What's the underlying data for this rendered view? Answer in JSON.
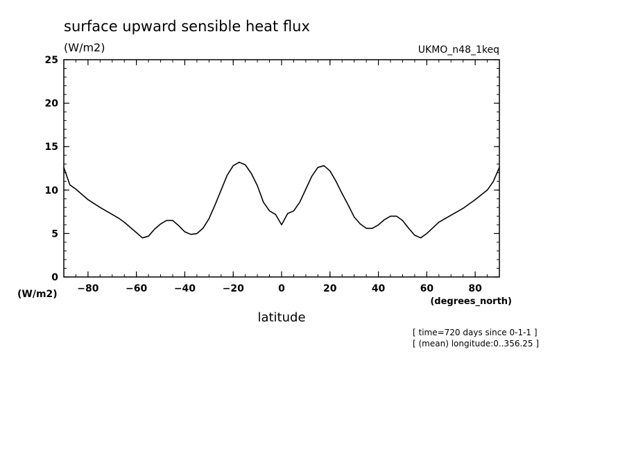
{
  "chart_data": {
    "type": "line",
    "title": "surface upward sensible heat flux",
    "units": "(W/m2)",
    "model": "UKMO_n48_1keq",
    "y_axis_units_label": "(W/m2)",
    "x_units_label": "(degrees_north)",
    "xlabel": "latitude",
    "notes": [
      "[ time=720 days since 0-1-1 ]",
      "[ (mean) longitude:0..356.25 ]"
    ],
    "xlim": [
      -90,
      90
    ],
    "ylim": [
      0,
      25
    ],
    "x_ticks": [
      -80,
      -60,
      -40,
      -20,
      0,
      20,
      40,
      60,
      80
    ],
    "y_ticks": [
      0,
      5,
      10,
      15,
      20,
      25
    ],
    "grid": false,
    "series": [
      {
        "color": "#000000",
        "x": [
          -90,
          -87.5,
          -85,
          -80,
          -75,
          -70,
          -67.5,
          -65,
          -60,
          -57.5,
          -55,
          -52.5,
          -50,
          -47.5,
          -45,
          -42.5,
          -40,
          -37.5,
          -35,
          -32.5,
          -30,
          -27.5,
          -25,
          -22.5,
          -20,
          -17.5,
          -15,
          -12.5,
          -10,
          -7.5,
          -5,
          -2.5,
          0,
          2.5,
          5,
          7.5,
          10,
          12.5,
          15,
          17.5,
          20,
          22.5,
          25,
          27.5,
          30,
          32.5,
          35,
          37.5,
          40,
          42.5,
          45,
          47.5,
          50,
          52.5,
          55,
          57.5,
          60,
          65,
          70,
          75,
          80,
          85,
          87.5,
          90
        ],
        "y": [
          12.6,
          10.6,
          10.1,
          8.9,
          8.0,
          7.2,
          6.8,
          6.3,
          5.1,
          4.5,
          4.7,
          5.5,
          6.1,
          6.5,
          6.5,
          5.9,
          5.2,
          4.9,
          5.0,
          5.6,
          6.7,
          8.3,
          10.0,
          11.7,
          12.8,
          13.2,
          12.9,
          11.9,
          10.5,
          8.6,
          7.6,
          7.2,
          6.0,
          7.3,
          7.6,
          8.6,
          10.1,
          11.6,
          12.6,
          12.8,
          12.2,
          11.0,
          9.6,
          8.3,
          6.9,
          6.1,
          5.6,
          5.6,
          6.0,
          6.6,
          7.0,
          7.0,
          6.5,
          5.6,
          4.8,
          4.5,
          5.0,
          6.3,
          7.1,
          7.9,
          8.9,
          10.0,
          11.0,
          12.6
        ]
      }
    ]
  }
}
